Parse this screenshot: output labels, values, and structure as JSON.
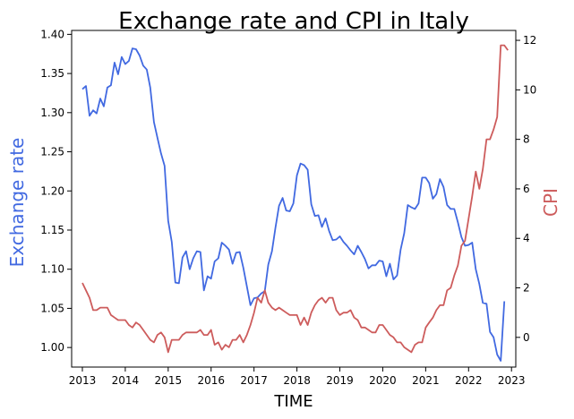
{
  "chart_data": {
    "type": "line",
    "title": "Exchange rate and CPI in Italy",
    "xlabel": "TIME",
    "ylabel_left": "Exchange rate",
    "ylabel_right": "CPI",
    "x_ticks": [
      "2013",
      "2014",
      "2015",
      "2016",
      "2017",
      "2018",
      "2019",
      "2020",
      "2021",
      "2022",
      "2023"
    ],
    "xlim": [
      2012.75,
      2023.1
    ],
    "ylim_left": [
      0.975,
      1.405
    ],
    "ylim_right": [
      -1.2,
      12.4
    ],
    "y_ticks_left": [
      "1.00",
      "1.05",
      "1.10",
      "1.15",
      "1.20",
      "1.25",
      "1.30",
      "1.35",
      "1.40"
    ],
    "y_ticks_right": [
      "0",
      "2",
      "4",
      "6",
      "8",
      "10",
      "12"
    ],
    "grid": false,
    "colors": {
      "exchange": "#4169e1",
      "cpi": "#cd5c5c"
    },
    "series": [
      {
        "axis": "left",
        "x": [
          2013.0,
          2013.083,
          2013.167,
          2013.25,
          2013.333,
          2013.417,
          2013.5,
          2013.583,
          2013.667,
          2013.75,
          2013.833,
          2013.917,
          2014.0,
          2014.083,
          2014.167,
          2014.25,
          2014.333,
          2014.417,
          2014.5,
          2014.583,
          2014.667,
          2014.75,
          2014.833,
          2014.917,
          2015.0,
          2015.083,
          2015.167,
          2015.25,
          2015.333,
          2015.417,
          2015.5,
          2015.583,
          2015.667,
          2015.75,
          2015.833,
          2015.917,
          2016.0,
          2016.083,
          2016.167,
          2016.25,
          2016.333,
          2016.417,
          2016.5,
          2016.583,
          2016.667,
          2016.75,
          2016.833,
          2016.917,
          2017.0,
          2017.083,
          2017.167,
          2017.25,
          2017.333,
          2017.417,
          2017.5,
          2017.583,
          2017.667,
          2017.75,
          2017.833,
          2017.917,
          2018.0,
          2018.083,
          2018.167,
          2018.25,
          2018.333,
          2018.417,
          2018.5,
          2018.583,
          2018.667,
          2018.75,
          2018.833,
          2018.917,
          2019.0,
          2019.083,
          2019.167,
          2019.25,
          2019.333,
          2019.417,
          2019.5,
          2019.583,
          2019.667,
          2019.75,
          2019.833,
          2019.917,
          2020.0,
          2020.083,
          2020.167,
          2020.25,
          2020.333,
          2020.417,
          2020.5,
          2020.583,
          2020.667,
          2020.75,
          2020.833,
          2020.917,
          2021.0,
          2021.083,
          2021.167,
          2021.25,
          2021.333,
          2021.417,
          2021.5,
          2021.583,
          2021.667,
          2021.75,
          2021.833,
          2021.917,
          2022.0,
          2022.083,
          2022.167,
          2022.25,
          2022.333,
          2022.417,
          2022.5,
          2022.583,
          2022.667,
          2022.75,
          2022.833
        ],
        "values": [
          1.33,
          1.334,
          1.296,
          1.303,
          1.299,
          1.318,
          1.308,
          1.332,
          1.335,
          1.364,
          1.349,
          1.371,
          1.362,
          1.366,
          1.382,
          1.381,
          1.373,
          1.36,
          1.355,
          1.332,
          1.288,
          1.268,
          1.248,
          1.232,
          1.162,
          1.135,
          1.083,
          1.082,
          1.115,
          1.123,
          1.1,
          1.114,
          1.123,
          1.122,
          1.073,
          1.091,
          1.088,
          1.11,
          1.114,
          1.134,
          1.13,
          1.125,
          1.107,
          1.121,
          1.122,
          1.102,
          1.078,
          1.054,
          1.063,
          1.064,
          1.069,
          1.072,
          1.106,
          1.123,
          1.153,
          1.181,
          1.191,
          1.175,
          1.174,
          1.184,
          1.22,
          1.235,
          1.233,
          1.227,
          1.183,
          1.168,
          1.169,
          1.154,
          1.165,
          1.149,
          1.137,
          1.138,
          1.142,
          1.135,
          1.13,
          1.124,
          1.119,
          1.13,
          1.122,
          1.113,
          1.101,
          1.105,
          1.105,
          1.111,
          1.11,
          1.091,
          1.107,
          1.087,
          1.092,
          1.125,
          1.146,
          1.182,
          1.179,
          1.177,
          1.184,
          1.217,
          1.217,
          1.21,
          1.19,
          1.196,
          1.215,
          1.205,
          1.182,
          1.177,
          1.177,
          1.16,
          1.141,
          1.13,
          1.131,
          1.134,
          1.1,
          1.081,
          1.057,
          1.056,
          1.02,
          1.013,
          0.991,
          0.983,
          1.059
        ]
      },
      {
        "axis": "right",
        "x": [
          2013.0,
          2013.083,
          2013.167,
          2013.25,
          2013.333,
          2013.417,
          2013.5,
          2013.583,
          2013.667,
          2013.75,
          2013.833,
          2013.917,
          2014.0,
          2014.083,
          2014.167,
          2014.25,
          2014.333,
          2014.417,
          2014.5,
          2014.583,
          2014.667,
          2014.75,
          2014.833,
          2014.917,
          2015.0,
          2015.083,
          2015.167,
          2015.25,
          2015.333,
          2015.417,
          2015.5,
          2015.583,
          2015.667,
          2015.75,
          2015.833,
          2015.917,
          2016.0,
          2016.083,
          2016.167,
          2016.25,
          2016.333,
          2016.417,
          2016.5,
          2016.583,
          2016.667,
          2016.75,
          2016.833,
          2016.917,
          2017.0,
          2017.083,
          2017.167,
          2017.25,
          2017.333,
          2017.417,
          2017.5,
          2017.583,
          2017.667,
          2017.75,
          2017.833,
          2017.917,
          2018.0,
          2018.083,
          2018.167,
          2018.25,
          2018.333,
          2018.417,
          2018.5,
          2018.583,
          2018.667,
          2018.75,
          2018.833,
          2018.917,
          2019.0,
          2019.083,
          2019.167,
          2019.25,
          2019.333,
          2019.417,
          2019.5,
          2019.583,
          2019.667,
          2019.75,
          2019.833,
          2019.917,
          2020.0,
          2020.083,
          2020.167,
          2020.25,
          2020.333,
          2020.417,
          2020.5,
          2020.583,
          2020.667,
          2020.75,
          2020.833,
          2020.917,
          2021.0,
          2021.083,
          2021.167,
          2021.25,
          2021.333,
          2021.417,
          2021.5,
          2021.583,
          2021.667,
          2021.75,
          2021.833,
          2021.917,
          2022.0,
          2022.083,
          2022.167,
          2022.25,
          2022.333,
          2022.417,
          2022.5,
          2022.583,
          2022.667,
          2022.75,
          2022.833,
          2022.917
        ],
        "values": [
          2.2,
          1.9,
          1.6,
          1.1,
          1.1,
          1.2,
          1.2,
          1.2,
          0.9,
          0.8,
          0.7,
          0.7,
          0.7,
          0.5,
          0.4,
          0.6,
          0.5,
          0.3,
          0.1,
          -0.1,
          -0.2,
          0.1,
          0.2,
          0.0,
          -0.6,
          -0.1,
          -0.1,
          -0.1,
          0.1,
          0.2,
          0.2,
          0.2,
          0.2,
          0.3,
          0.1,
          0.1,
          0.3,
          -0.3,
          -0.2,
          -0.5,
          -0.3,
          -0.4,
          -0.1,
          -0.1,
          0.1,
          -0.2,
          0.1,
          0.5,
          1.0,
          1.6,
          1.4,
          1.9,
          1.4,
          1.2,
          1.1,
          1.2,
          1.1,
          1.0,
          0.9,
          0.9,
          0.9,
          0.5,
          0.8,
          0.5,
          1.0,
          1.3,
          1.5,
          1.6,
          1.4,
          1.6,
          1.6,
          1.1,
          0.9,
          1.0,
          1.0,
          1.1,
          0.8,
          0.7,
          0.4,
          0.4,
          0.3,
          0.2,
          0.2,
          0.5,
          0.5,
          0.3,
          0.1,
          0.0,
          -0.2,
          -0.2,
          -0.4,
          -0.5,
          -0.6,
          -0.3,
          -0.2,
          -0.2,
          0.4,
          0.6,
          0.8,
          1.1,
          1.3,
          1.3,
          1.9,
          2.0,
          2.5,
          2.9,
          3.7,
          3.9,
          4.8,
          5.7,
          6.7,
          6.0,
          6.8,
          8.0,
          8.0,
          8.4,
          8.9,
          11.8,
          11.8,
          11.6
        ]
      }
    ]
  }
}
